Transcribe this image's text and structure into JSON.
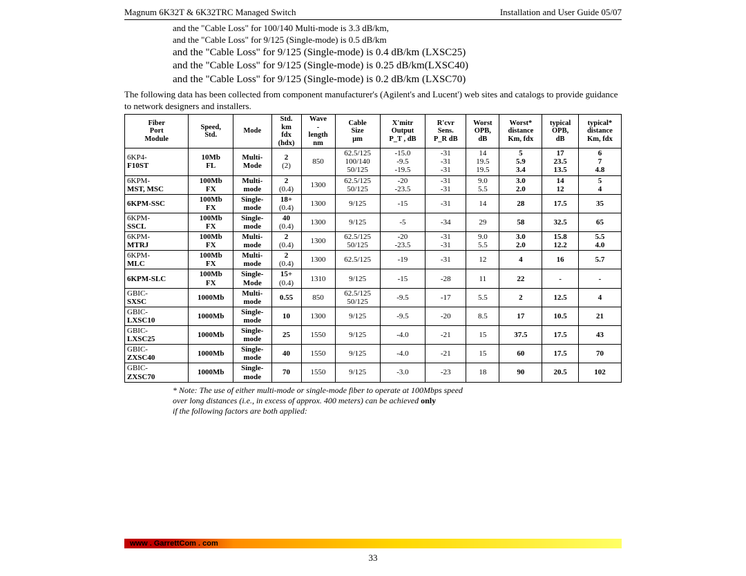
{
  "header": {
    "left": "Magnum 6K32T & 6K32TRC Managed Switch",
    "right": "Installation and User Guide 05/07"
  },
  "intro": {
    "lines_small": [
      "and the \"Cable Loss\" for 100/140 Multi-mode is 3.3 dB/km,",
      "and the \"Cable Loss\" for 9/125 (Single-mode) is 0.5 dB/km"
    ],
    "lines_large": [
      "and the \"Cable Loss\" for 9/125 (Single-mode) is 0.4 dB/km (LXSC25)",
      "and the \"Cable Loss\" for 9/125 (Single-mode) is 0.25 dB/km(LXSC40)",
      "and the \"Cable Loss\" for 9/125 (Single-mode) is 0.2 dB/km (LXSC70)"
    ],
    "para": "The following data has been collected from component manufacturer's (Agilent's and Lucent') web sites and catalogs to provide guidance to network designers and installers."
  },
  "table": {
    "headers": [
      "Fiber\nPort\nModule",
      "Speed,\nStd.",
      "Mode",
      "Std.\nkm\nfdx\n(hdx)",
      "Wave\n-\nlength\nnm",
      "Cable\nSize\nμm",
      "X'mitr\nOutput\nP_T , dB",
      "R'cvr\nSens.\nP_R dB",
      "Worst\nOPB,\ndB",
      "Worst*\ndistance\nKm, fdx",
      "typical\nOPB,\ndB",
      "typical*\ndistance\nKm, fdx"
    ],
    "rows": [
      {
        "c": [
          "6KP4-\nF10ST",
          "10Mb\nFL",
          "Multi-\nMode",
          "2\n(2)",
          "850",
          "62.5/125\n100/140\n50/125",
          "-15.0\n-9.5\n-19.5",
          "-31\n-31\n-31",
          "14\n19.5\n19.5",
          "5\n5.9\n3.4",
          "17\n23.5\n13.5",
          "6\n7\n4.8"
        ],
        "bold2": true
      },
      {
        "c": [
          "6KPM-\nMST, MSC",
          "100Mb\nFX",
          "Multi-\nmode",
          "2\n(0.4)",
          "1300",
          "62.5/125\n50/125",
          "-20\n-23.5",
          "-31\n-31",
          "9.0\n5.5",
          "3.0\n2.0",
          "14\n12",
          "5\n4"
        ],
        "bold2": true
      },
      {
        "c": [
          "6KPM-SSC",
          "100Mb\nFX",
          "Single-\nmode",
          "18+\n(0.4)",
          "1300",
          "9/125",
          "-15",
          "-31",
          "14",
          "28",
          "17.5",
          "35"
        ]
      },
      {
        "c": [
          "6KPM-\nSSCL",
          "100Mb\nFX",
          "Single-\nmode",
          "40\n(0.4)",
          "1300",
          "9/125",
          "-5",
          "-34",
          "29",
          "58",
          "32.5",
          "65"
        ],
        "bold2": true
      },
      {
        "c": [
          "6KPM-\nMTRJ",
          "100Mb\nFX",
          "Multi-\nmode",
          "2\n(0.4)",
          "1300",
          "62.5/125\n50/125",
          "-20\n-23.5",
          "-31\n-31",
          "9.0\n5.5",
          "3.0\n2.0",
          "15.8\n12.2",
          "5.5\n4.0"
        ],
        "bold2": true
      },
      {
        "c": [
          "6KPM-\nMLC",
          "100Mb\nFX",
          "Multi-\nmode",
          "2\n(0.4)",
          "1300",
          "62.5/125",
          "-19",
          "-31",
          "12",
          "4",
          "16",
          "5.7"
        ],
        "bold2": true
      },
      {
        "c": [
          "6KPM-SLC",
          "100Mb\nFX",
          "Single-\nMode",
          "15+\n(0.4)",
          "1310",
          "9/125",
          "-15",
          "-28",
          "11",
          "22",
          "-",
          "-"
        ]
      },
      {
        "c": [
          "GBIC-\nSXSC",
          "1000Mb",
          "Multi-\nmode",
          "0.55",
          "850",
          "62.5/125\n50/125",
          "-9.5",
          "-17",
          "5.5",
          "2",
          "12.5",
          "4"
        ],
        "bold2": true
      },
      {
        "c": [
          "GBIC-\nLXSC10",
          "1000Mb",
          "Single-\nmode",
          "10",
          "1300",
          "9/125",
          "-9.5",
          "-20",
          "8.5",
          "17",
          "10.5",
          "21"
        ],
        "bold2": true
      },
      {
        "c": [
          "GBIC-\nLXSC25",
          "1000Mb",
          "Single-\nmode",
          "25",
          "1550",
          "9/125",
          "-4.0",
          "-21",
          "15",
          "37.5",
          "17.5",
          "43"
        ],
        "bold2": true
      },
      {
        "c": [
          "GBIC-\nZXSC40",
          "1000Mb",
          "Single-\nmode",
          "40",
          "1550",
          "9/125",
          "-4.0",
          "-21",
          "15",
          "60",
          "17.5",
          "70"
        ],
        "bold2": true
      },
      {
        "c": [
          "GBIC-\nZXSC70",
          "1000Mb",
          "Single-\nmode",
          "70",
          "1550",
          "9/125",
          "-3.0",
          "-23",
          "18",
          "90",
          "20.5",
          "102"
        ],
        "bold2": true
      }
    ]
  },
  "note": {
    "line1_prefix": "* Note:  The use of either multi-mode or single-mode fiber to operate at 100Mbps speed",
    "line2_prefix": "over long distances (i.e., in excess of  approx. 400 meters) can be achieved ",
    "only": "only",
    "line3": "if the following factors are both applied:"
  },
  "footer": {
    "url": "www . GarrettCom . com",
    "page": "33"
  }
}
